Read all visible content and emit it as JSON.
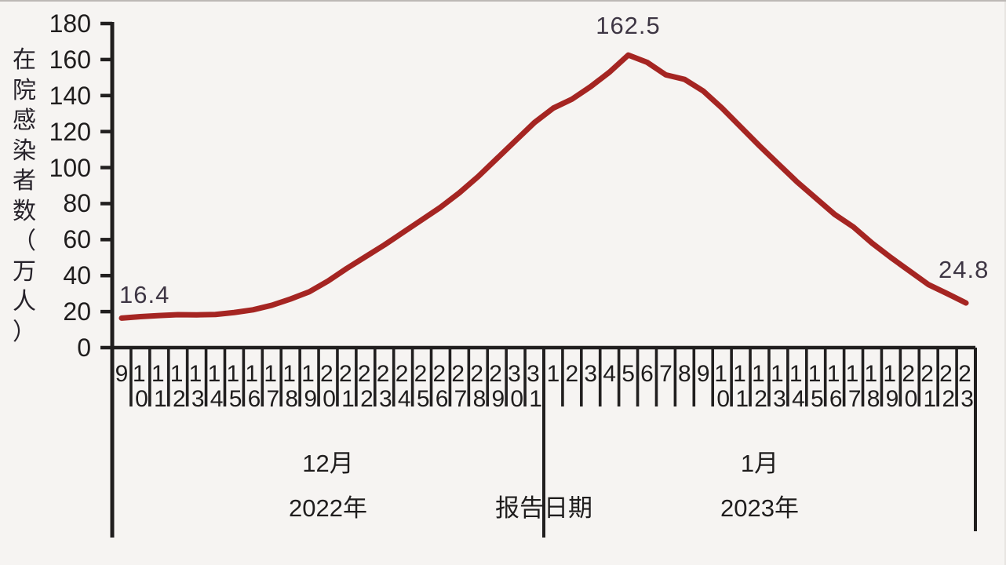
{
  "colors": {
    "line": "#a52522",
    "axis": "#211f1f",
    "annotation_text": "#3e3644",
    "background": "#f6f4f2"
  },
  "chart_data": {
    "type": "line",
    "title": "",
    "ylabel": "在院感染者数（万人）",
    "xlabel": "报告日期",
    "ylim": [
      0,
      180
    ],
    "y_tick_step": 20,
    "grid": false,
    "legend": false,
    "x_groups": [
      {
        "month": "12月",
        "year": "2022年",
        "days": [
          "9",
          "10",
          "11",
          "12",
          "13",
          "14",
          "15",
          "16",
          "17",
          "18",
          "19",
          "20",
          "21",
          "22",
          "23",
          "24",
          "25",
          "26",
          "27",
          "28",
          "29",
          "30",
          "31"
        ]
      },
      {
        "month": "1月",
        "year": "2023年",
        "days": [
          "1",
          "2",
          "3",
          "4",
          "5",
          "6",
          "7",
          "8",
          "9",
          "10",
          "11",
          "12",
          "13",
          "14",
          "15",
          "16",
          "17",
          "18",
          "19",
          "20",
          "21",
          "22",
          "23"
        ]
      }
    ],
    "series": [
      {
        "name": "在院感染者数",
        "values": [
          16.4,
          17.2,
          17.8,
          18.3,
          18.2,
          18.4,
          19.5,
          21,
          23.5,
          27,
          31,
          37,
          44,
          50.5,
          57,
          64,
          71,
          78,
          86,
          95,
          105,
          115,
          125,
          133,
          138,
          145,
          153,
          162.5,
          158.5,
          151.5,
          149,
          142.5,
          133,
          122.5,
          112,
          102,
          92,
          83,
          74,
          67,
          58,
          50,
          42.5,
          35,
          30,
          24.8
        ]
      }
    ],
    "annotated_points": [
      {
        "index": 0,
        "day": "12-09",
        "label": "16.4"
      },
      {
        "index": 27,
        "day": "01-05",
        "label": "162.5"
      },
      {
        "index": 45,
        "day": "01-23",
        "label": "24.8"
      }
    ]
  }
}
